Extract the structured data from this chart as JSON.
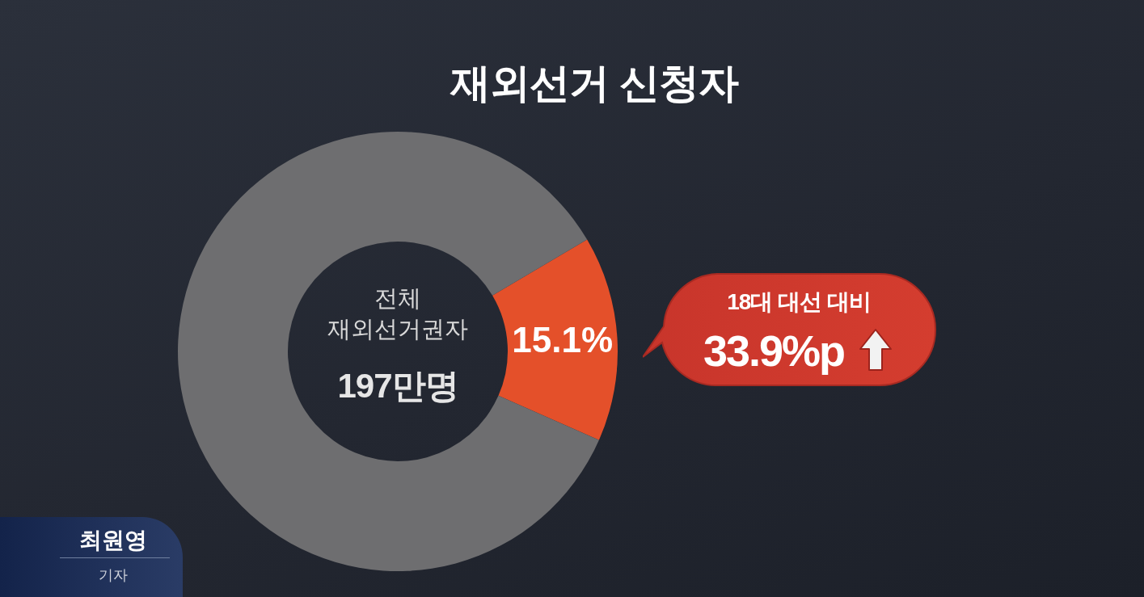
{
  "chart_data": {
    "type": "donut",
    "title": "재외선거 신청자",
    "categories": [
      null,
      null
    ],
    "values": [
      15.1,
      84.9
    ],
    "colors": [
      "#e4502a",
      "#6e6e70"
    ],
    "value_labels": [
      "15.1%",
      null
    ],
    "annotations": [
      "전체 재외선거권자",
      "197만명",
      "18대 대선 대비",
      "33.9%p",
      "최원영",
      "기자"
    ]
  }
}
